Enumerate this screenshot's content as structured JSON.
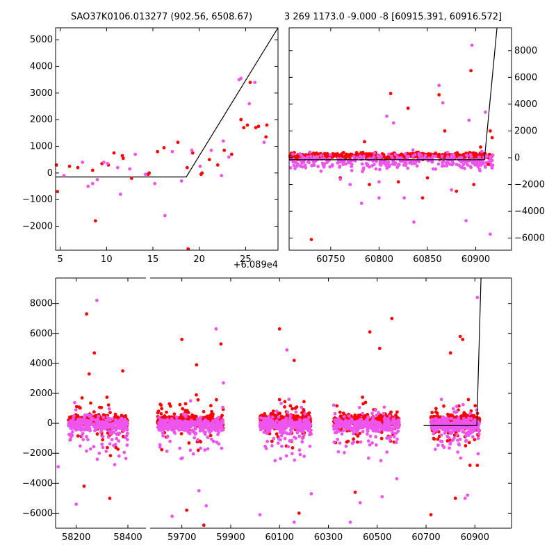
{
  "chart_data": [
    {
      "type": "scatter",
      "title": "SAO37K0106.013277 (902.56, 6508.67)",
      "xlabel": "",
      "ylabel": "",
      "x_offset_label": "+6.089e4",
      "xlim": [
        4.5,
        28.5
      ],
      "ylim": [
        -2900,
        5450
      ],
      "xticks": [
        5,
        10,
        15,
        20,
        25
      ],
      "yticks": [
        -2000,
        -1000,
        0,
        1000,
        2000,
        3000,
        4000,
        5000
      ],
      "ytick_side": "left",
      "grid": false,
      "model_line": {
        "color": "#000000",
        "x": [
          4.5,
          18.6,
          28.5
        ],
        "y": [
          -150,
          -150,
          5450
        ]
      },
      "series": [
        {
          "color": "#ff0000",
          "points": [
            [
              4.6,
              300
            ],
            [
              4.7,
              -700
            ],
            [
              6.0,
              250
            ],
            [
              6.9,
              200
            ],
            [
              8.5,
              100
            ],
            [
              8.8,
              -1800
            ],
            [
              9.5,
              350
            ],
            [
              10.2,
              300
            ],
            [
              10.8,
              750
            ],
            [
              11.7,
              650
            ],
            [
              11.8,
              550
            ],
            [
              12.7,
              -200
            ],
            [
              14.5,
              -50
            ],
            [
              14.6,
              0
            ],
            [
              15.5,
              800
            ],
            [
              16.2,
              950
            ],
            [
              17.7,
              1150
            ],
            [
              18.7,
              200
            ],
            [
              18.8,
              -2850
            ],
            [
              19.3,
              750
            ],
            [
              20.2,
              -50
            ],
            [
              20.3,
              0
            ],
            [
              21.1,
              500
            ],
            [
              22.0,
              300
            ],
            [
              22.7,
              850
            ],
            [
              23.5,
              700
            ],
            [
              24.5,
              2000
            ],
            [
              24.8,
              1700
            ],
            [
              25.2,
              1800
            ],
            [
              25.5,
              3400
            ],
            [
              26.1,
              1700
            ],
            [
              26.4,
              1750
            ],
            [
              27.2,
              1350
            ],
            [
              27.3,
              1800
            ]
          ]
        },
        {
          "color": "#ee55ee",
          "points": [
            [
              5.4,
              -100
            ],
            [
              7.4,
              400
            ],
            [
              8.0,
              -500
            ],
            [
              8.5,
              -400
            ],
            [
              9.0,
              -250
            ],
            [
              9.7,
              400
            ],
            [
              10.1,
              350
            ],
            [
              11.2,
              200
            ],
            [
              11.5,
              -800
            ],
            [
              12.5,
              150
            ],
            [
              13.1,
              700
            ],
            [
              14.2,
              -50
            ],
            [
              15.2,
              -400
            ],
            [
              16.3,
              -1600
            ],
            [
              17.1,
              800
            ],
            [
              18.1,
              -300
            ],
            [
              19.2,
              850
            ],
            [
              20.1,
              250
            ],
            [
              21.3,
              850
            ],
            [
              22.4,
              -100
            ],
            [
              22.6,
              1200
            ],
            [
              23.2,
              600
            ],
            [
              24.3,
              3500
            ],
            [
              24.5,
              3550
            ],
            [
              25.4,
              2600
            ],
            [
              26.0,
              3400
            ],
            [
              27.0,
              1150
            ]
          ]
        }
      ]
    },
    {
      "type": "scatter",
      "title": "3 269 1173.0 -9.000 -8 [60915.391, 60916.572]",
      "xlabel": "",
      "ylabel": "",
      "xlim": [
        60707,
        60937
      ],
      "ylim": [
        -6900,
        9700
      ],
      "xticks": [
        60750,
        60800,
        60850,
        60900
      ],
      "yticks": [
        -6000,
        -4000,
        -2000,
        0,
        2000,
        4000,
        6000,
        8000
      ],
      "ytick_side": "right",
      "grid": false,
      "model_line": {
        "color": "#000000",
        "x": [
          60707,
          60909,
          60922
        ],
        "y": [
          -150,
          -150,
          9700
        ]
      },
      "series": [
        {
          "color": "#ff0000",
          "points": [
            [
              60730,
              -6100
            ],
            [
              60785,
              1200
            ],
            [
              60812,
              4800
            ],
            [
              60830,
              3700
            ],
            [
              60845,
              -3000
            ],
            [
              60862,
              4700
            ],
            [
              60868,
              2000
            ],
            [
              60880,
              -2500
            ],
            [
              60895,
              6500
            ],
            [
              60898,
              -2000
            ],
            [
              60915,
              2000
            ],
            [
              60917,
              1500
            ],
            [
              60913,
              -500
            ],
            [
              60905,
              800
            ],
            [
              60760,
              -1500
            ],
            [
              60790,
              -2000
            ],
            [
              60820,
              -1800
            ],
            [
              60850,
              -1500
            ]
          ]
        },
        {
          "color": "#ee55ee",
          "points": [
            [
              60808,
              3100
            ],
            [
              60815,
              2600
            ],
            [
              60862,
              5400
            ],
            [
              60866,
              4100
            ],
            [
              60893,
              2800
            ],
            [
              60896,
              8400
            ],
            [
              60915,
              -5700
            ],
            [
              60910,
              3400
            ],
            [
              60836,
              -4800
            ],
            [
              60826,
              -3000
            ],
            [
              60782,
              -3400
            ],
            [
              60800,
              -3000
            ],
            [
              60890,
              -4700
            ],
            [
              60875,
              -2400
            ],
            [
              60770,
              -2000
            ],
            [
              60740,
              -1000
            ],
            [
              60760,
              -1600
            ],
            [
              60800,
              -1800
            ]
          ]
        }
      ]
    },
    {
      "type": "scatter",
      "title": "",
      "xlabel": "",
      "ylabel": "",
      "broken_axis": true,
      "panels": [
        {
          "xlim": [
            58120,
            58470
          ],
          "xticks": [
            58200,
            58400
          ],
          "tick_labels": [
            "58200",
            "58400"
          ]
        },
        {
          "xlim": [
            59570,
            61050
          ],
          "xticks": [
            59700,
            59900,
            60100,
            60300,
            60500,
            60700,
            60900
          ],
          "tick_labels": [
            "59700",
            "59900",
            "60100",
            "60300",
            "60500",
            "60700",
            "60900"
          ]
        }
      ],
      "ylim": [
        -7000,
        9700
      ],
      "yticks": [
        -6000,
        -4000,
        -2000,
        0,
        2000,
        4000,
        6000,
        8000
      ],
      "ytick_side": "left",
      "grid": false,
      "model_line": {
        "color": "#000000",
        "x": [
          60690,
          60908,
          60925
        ],
        "y": [
          -150,
          -150,
          9700
        ]
      },
      "clusters": [
        {
          "xmin": 58170,
          "xmax": 58400,
          "cluster_id": 0
        },
        {
          "xmin": 59600,
          "xmax": 59870,
          "cluster_id": 1
        },
        {
          "xmin": 60020,
          "xmax": 60230,
          "cluster_id": 2
        },
        {
          "xmin": 60320,
          "xmax": 60590,
          "cluster_id": 3
        },
        {
          "xmin": 60720,
          "xmax": 60920,
          "cluster_id": 4
        }
      ],
      "series": [
        {
          "color": "#ff0000",
          "outliers": [
            [
              58240,
              7300
            ],
            [
              58270,
              4700
            ],
            [
              58250,
              3300
            ],
            [
              58330,
              -5000
            ],
            [
              58230,
              -4200
            ],
            [
              58380,
              3500
            ],
            [
              59700,
              5600
            ],
            [
              59760,
              3900
            ],
            [
              59720,
              -5800
            ],
            [
              59790,
              -6800
            ],
            [
              59860,
              5300
            ],
            [
              60100,
              6300
            ],
            [
              60160,
              4200
            ],
            [
              60180,
              -6000
            ],
            [
              60470,
              6100
            ],
            [
              60510,
              5000
            ],
            [
              60560,
              7000
            ],
            [
              60410,
              -4600
            ],
            [
              60800,
              4700
            ],
            [
              60840,
              5800
            ],
            [
              60850,
              5600
            ],
            [
              60720,
              -6100
            ],
            [
              60820,
              -5000
            ],
            [
              60880,
              -2800
            ],
            [
              60910,
              -2800
            ]
          ]
        },
        {
          "color": "#ee55ee",
          "outliers": [
            [
              58280,
              8200
            ],
            [
              58200,
              -5400
            ],
            [
              58130,
              -2900
            ],
            [
              59660,
              -6200
            ],
            [
              59840,
              6300
            ],
            [
              59870,
              2700
            ],
            [
              59770,
              -4500
            ],
            [
              59800,
              -5500
            ],
            [
              60020,
              -6100
            ],
            [
              60130,
              4900
            ],
            [
              60160,
              -6600
            ],
            [
              60230,
              -4700
            ],
            [
              60390,
              -6600
            ],
            [
              60430,
              -5300
            ],
            [
              60520,
              -4900
            ],
            [
              60580,
              -3700
            ],
            [
              60910,
              8400
            ],
            [
              60870,
              -4800
            ],
            [
              60860,
              -5000
            ]
          ]
        }
      ]
    }
  ]
}
